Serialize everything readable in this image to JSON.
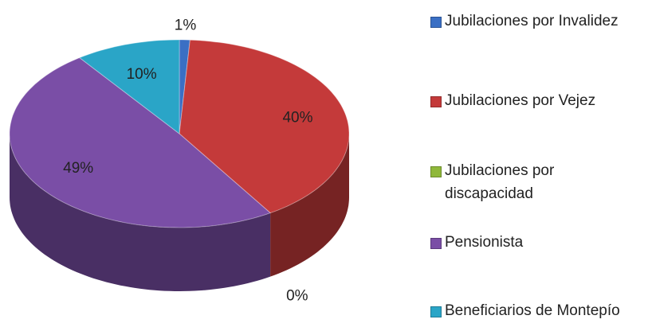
{
  "chart_data": {
    "type": "pie",
    "categories": [
      "Jubilaciones por Invalidez",
      "Jubilaciones por Vejez",
      "Jubilaciones por discapacidad",
      "Pensionista",
      "Beneficiarios de Montepío"
    ],
    "values": [
      1,
      40,
      0,
      49,
      10
    ],
    "value_labels": [
      "1%",
      "40%",
      "0%",
      "49%",
      "10%"
    ],
    "colors": [
      "#3a6fc4",
      "#c43a3a",
      "#8fb83a",
      "#7a4ea6",
      "#2aa5c7"
    ],
    "legend": "right"
  }
}
